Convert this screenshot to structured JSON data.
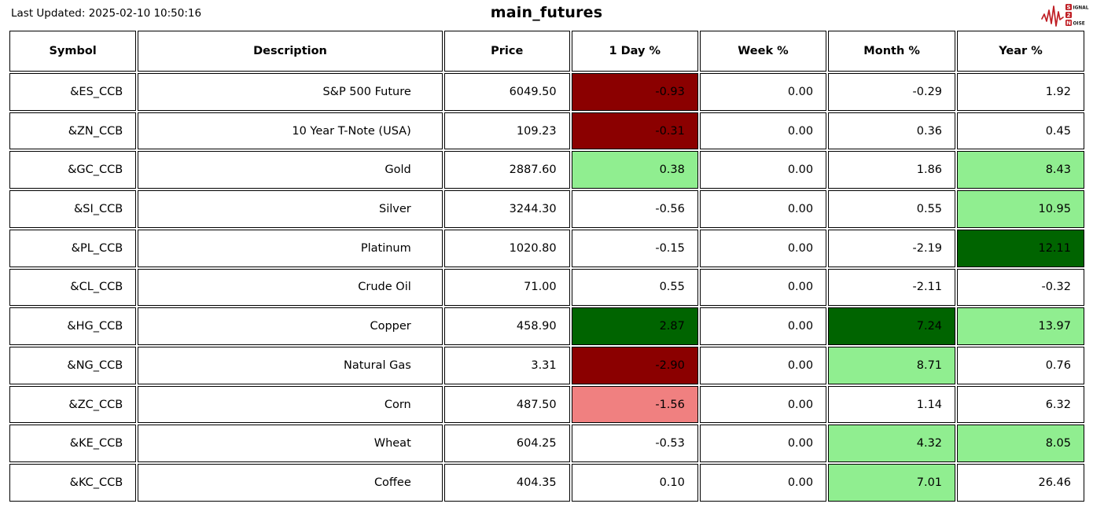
{
  "meta": {
    "last_updated": "Last Updated: 2025-02-10 10:50:16",
    "title": "main_futures"
  },
  "logo": {
    "line1_initial": "S",
    "line1_rest": "IGNAL",
    "line2_initial": "2",
    "line3_initial": "N",
    "line3_rest": "OISE",
    "accent_color": "#bf1e24"
  },
  "colors": {
    "strong_positive": "#006400",
    "positive": "#90ee90",
    "negative": "#f08080",
    "strong_negative": "#8b0000"
  },
  "table": {
    "columns": [
      {
        "key": "symbol",
        "label": "Symbol"
      },
      {
        "key": "description",
        "label": "Description"
      },
      {
        "key": "price",
        "label": "Price"
      },
      {
        "key": "day",
        "label": "1 Day %"
      },
      {
        "key": "week",
        "label": "Week %"
      },
      {
        "key": "month",
        "label": "Month %"
      },
      {
        "key": "year",
        "label": "Year %"
      }
    ],
    "rows": [
      {
        "symbol": "&ES_CCB",
        "description": "S&P 500 Future",
        "price": "6049.50",
        "day": "-0.93",
        "week": "0.00",
        "month": "-0.29",
        "year": "1.92",
        "bg": {
          "day": "#8b0000"
        }
      },
      {
        "symbol": "&ZN_CCB",
        "description": "10 Year T-Note (USA)",
        "price": "109.23",
        "day": "-0.31",
        "week": "0.00",
        "month": "0.36",
        "year": "0.45",
        "bg": {
          "day": "#8b0000"
        }
      },
      {
        "symbol": "&GC_CCB",
        "description": "Gold",
        "price": "2887.60",
        "day": "0.38",
        "week": "0.00",
        "month": "1.86",
        "year": "8.43",
        "bg": {
          "day": "#90ee90",
          "year": "#90ee90"
        }
      },
      {
        "symbol": "&SI_CCB",
        "description": "Silver",
        "price": "3244.30",
        "day": "-0.56",
        "week": "0.00",
        "month": "0.55",
        "year": "10.95",
        "bg": {
          "year": "#90ee90"
        }
      },
      {
        "symbol": "&PL_CCB",
        "description": "Platinum",
        "price": "1020.80",
        "day": "-0.15",
        "week": "0.00",
        "month": "-2.19",
        "year": "12.11",
        "bg": {
          "year": "#006400"
        }
      },
      {
        "symbol": "&CL_CCB",
        "description": "Crude Oil",
        "price": "71.00",
        "day": "0.55",
        "week": "0.00",
        "month": "-2.11",
        "year": "-0.32",
        "bg": {}
      },
      {
        "symbol": "&HG_CCB",
        "description": "Copper",
        "price": "458.90",
        "day": "2.87",
        "week": "0.00",
        "month": "7.24",
        "year": "13.97",
        "bg": {
          "day": "#006400",
          "month": "#006400",
          "year": "#90ee90"
        }
      },
      {
        "symbol": "&NG_CCB",
        "description": "Natural Gas",
        "price": "3.31",
        "day": "-2.90",
        "week": "0.00",
        "month": "8.71",
        "year": "0.76",
        "bg": {
          "day": "#8b0000",
          "month": "#90ee90"
        }
      },
      {
        "symbol": "&ZC_CCB",
        "description": "Corn",
        "price": "487.50",
        "day": "-1.56",
        "week": "0.00",
        "month": "1.14",
        "year": "6.32",
        "bg": {
          "day": "#f08080"
        }
      },
      {
        "symbol": "&KE_CCB",
        "description": "Wheat",
        "price": "604.25",
        "day": "-0.53",
        "week": "0.00",
        "month": "4.32",
        "year": "8.05",
        "bg": {
          "month": "#90ee90",
          "year": "#90ee90"
        }
      },
      {
        "symbol": "&KC_CCB",
        "description": "Coffee",
        "price": "404.35",
        "day": "0.10",
        "week": "0.00",
        "month": "7.01",
        "year": "26.46",
        "bg": {
          "month": "#90ee90"
        }
      }
    ]
  }
}
